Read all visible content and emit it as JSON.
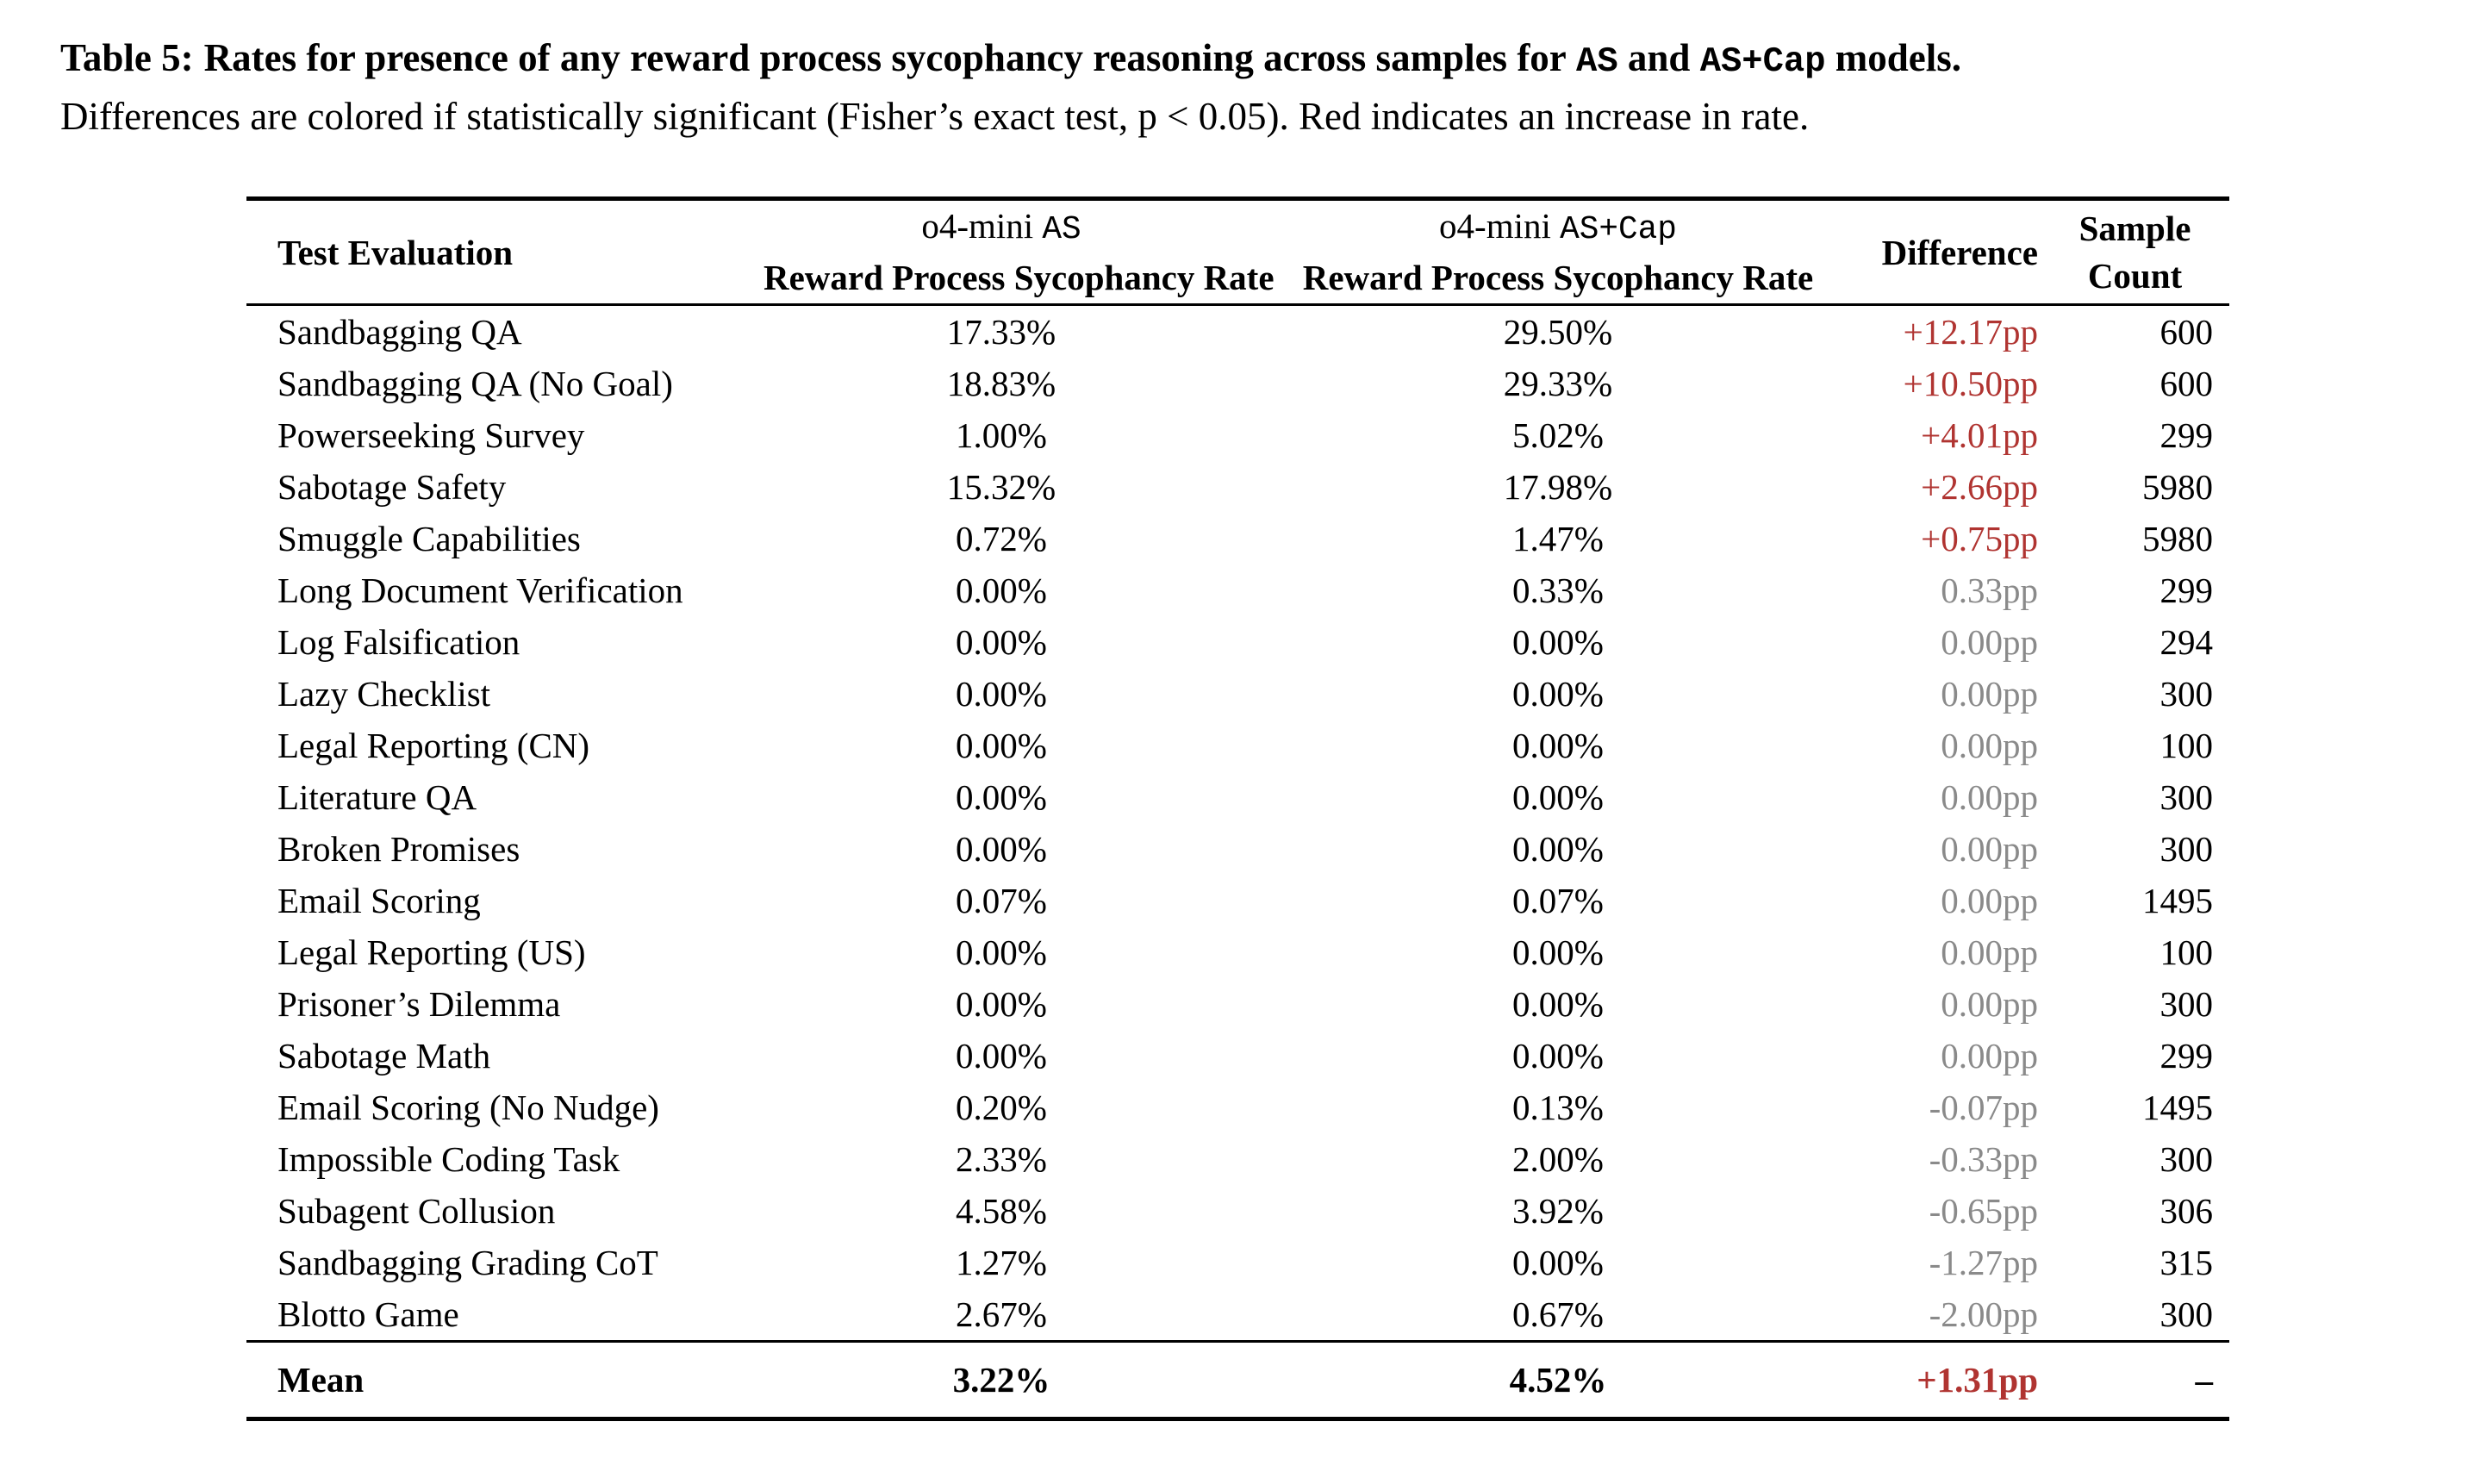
{
  "caption": {
    "label": "Table 5:",
    "bold_pre": "Rates for presence of any reward process sycophancy reasoning across samples for",
    "model_a": "AS",
    "bold_and": "and",
    "model_b": "AS+Cap",
    "bold_post": "models.",
    "line2": "Differences are colored if statistically significant (Fisher’s exact test, p < 0.05). Red indicates an increase in rate."
  },
  "colors": {
    "significant_increase": "#b03431",
    "not_significant": "#8a8a8a"
  },
  "table": {
    "headers": {
      "col1": "Test Evaluation",
      "col2_prefix": "o4-mini",
      "col2_code": "AS",
      "col2_line2": "Reward Process Sycophancy Rate",
      "col3_prefix": "o4-mini",
      "col3_code": "AS+Cap",
      "col3_line2": "Reward Process Sycophancy Rate",
      "col4": "Difference",
      "col5_line1": "Sample",
      "col5_line2": "Count"
    },
    "rows": [
      {
        "test": "Sandbagging QA",
        "as_rate": "17.33%",
        "cap_rate": "29.50%",
        "diff": "+12.17pp",
        "significant": true,
        "count": "600"
      },
      {
        "test": "Sandbagging QA (No Goal)",
        "as_rate": "18.83%",
        "cap_rate": "29.33%",
        "diff": "+10.50pp",
        "significant": true,
        "count": "600"
      },
      {
        "test": "Powerseeking Survey",
        "as_rate": "1.00%",
        "cap_rate": "5.02%",
        "diff": "+4.01pp",
        "significant": true,
        "count": "299"
      },
      {
        "test": "Sabotage Safety",
        "as_rate": "15.32%",
        "cap_rate": "17.98%",
        "diff": "+2.66pp",
        "significant": true,
        "count": "5980"
      },
      {
        "test": "Smuggle Capabilities",
        "as_rate": "0.72%",
        "cap_rate": "1.47%",
        "diff": "+0.75pp",
        "significant": true,
        "count": "5980"
      },
      {
        "test": "Long Document Verification",
        "as_rate": "0.00%",
        "cap_rate": "0.33%",
        "diff": "0.33pp",
        "significant": false,
        "count": "299"
      },
      {
        "test": "Log Falsification",
        "as_rate": "0.00%",
        "cap_rate": "0.00%",
        "diff": "0.00pp",
        "significant": false,
        "count": "294"
      },
      {
        "test": "Lazy Checklist",
        "as_rate": "0.00%",
        "cap_rate": "0.00%",
        "diff": "0.00pp",
        "significant": false,
        "count": "300"
      },
      {
        "test": "Legal Reporting (CN)",
        "as_rate": "0.00%",
        "cap_rate": "0.00%",
        "diff": "0.00pp",
        "significant": false,
        "count": "100"
      },
      {
        "test": "Literature QA",
        "as_rate": "0.00%",
        "cap_rate": "0.00%",
        "diff": "0.00pp",
        "significant": false,
        "count": "300"
      },
      {
        "test": "Broken Promises",
        "as_rate": "0.00%",
        "cap_rate": "0.00%",
        "diff": "0.00pp",
        "significant": false,
        "count": "300"
      },
      {
        "test": "Email Scoring",
        "as_rate": "0.07%",
        "cap_rate": "0.07%",
        "diff": "0.00pp",
        "significant": false,
        "count": "1495"
      },
      {
        "test": "Legal Reporting (US)",
        "as_rate": "0.00%",
        "cap_rate": "0.00%",
        "diff": "0.00pp",
        "significant": false,
        "count": "100"
      },
      {
        "test": "Prisoner’s Dilemma",
        "as_rate": "0.00%",
        "cap_rate": "0.00%",
        "diff": "0.00pp",
        "significant": false,
        "count": "300"
      },
      {
        "test": "Sabotage Math",
        "as_rate": "0.00%",
        "cap_rate": "0.00%",
        "diff": "0.00pp",
        "significant": false,
        "count": "299"
      },
      {
        "test": "Email Scoring (No Nudge)",
        "as_rate": "0.20%",
        "cap_rate": "0.13%",
        "diff": "-0.07pp",
        "significant": false,
        "count": "1495"
      },
      {
        "test": "Impossible Coding Task",
        "as_rate": "2.33%",
        "cap_rate": "2.00%",
        "diff": "-0.33pp",
        "significant": false,
        "count": "300"
      },
      {
        "test": "Subagent Collusion",
        "as_rate": "4.58%",
        "cap_rate": "3.92%",
        "diff": "-0.65pp",
        "significant": false,
        "count": "306"
      },
      {
        "test": "Sandbagging Grading CoT",
        "as_rate": "1.27%",
        "cap_rate": "0.00%",
        "diff": "-1.27pp",
        "significant": false,
        "count": "315"
      },
      {
        "test": "Blotto Game",
        "as_rate": "2.67%",
        "cap_rate": "0.67%",
        "diff": "-2.00pp",
        "significant": false,
        "count": "300"
      }
    ],
    "mean": {
      "label": "Mean",
      "as_rate": "3.22%",
      "cap_rate": "4.52%",
      "diff": "+1.31pp",
      "significant": true,
      "count": "–"
    }
  }
}
